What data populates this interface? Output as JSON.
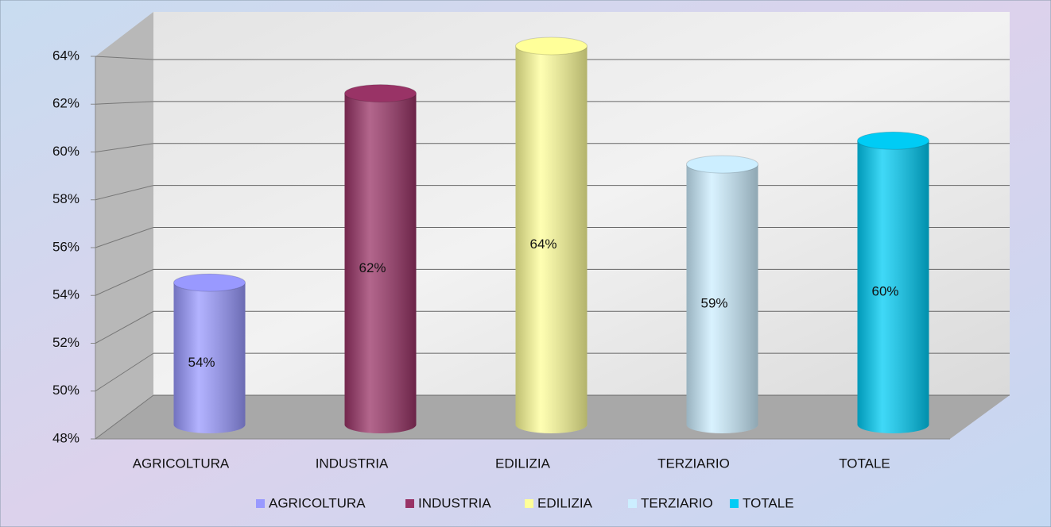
{
  "chart_data": {
    "type": "cylinder-bar",
    "categories": [
      "AGRICOLTURA",
      "INDUSTRIA",
      "EDILIZIA",
      "TERZIARIO",
      "TOTALE"
    ],
    "values": [
      54,
      62,
      64,
      59,
      60
    ],
    "value_labels": [
      "54%",
      "62%",
      "64%",
      "59%",
      "60%"
    ],
    "colors": [
      "#9999ff",
      "#993366",
      "#ffff99",
      "#cceeff",
      "#00ccf5"
    ],
    "ylim": [
      48,
      64
    ],
    "yticks": [
      {
        "value": 48,
        "label": "48%"
      },
      {
        "value": 50,
        "label": "50%"
      },
      {
        "value": 52,
        "label": "52%"
      },
      {
        "value": 54,
        "label": "54%"
      },
      {
        "value": 56,
        "label": "56%"
      },
      {
        "value": 58,
        "label": "58%"
      },
      {
        "value": 60,
        "label": "60%"
      },
      {
        "value": 62,
        "label": "62%"
      },
      {
        "value": 64,
        "label": "64%"
      }
    ],
    "grid": true,
    "legend": "bottom"
  }
}
